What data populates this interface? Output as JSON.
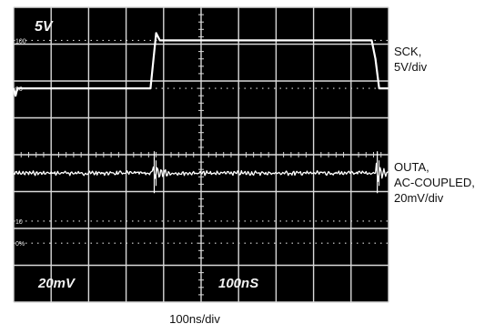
{
  "chart_data": {
    "type": "line",
    "title": "",
    "x_divisions": 10,
    "y_divisions": 8,
    "screen_readouts": {
      "top_left": "5V",
      "bottom_left": "20mV",
      "bottom_center": "100nS"
    },
    "marker_labels": [
      "100",
      "90",
      "10",
      "0%"
    ],
    "series": [
      {
        "name": "SCK, 5V/div",
        "scale": "5V/div",
        "x_div": [
          0,
          0.05,
          0.1,
          3.65,
          3.73,
          3.8,
          3.9,
          9.55,
          9.65,
          9.75,
          10
        ],
        "y_div": [
          5.8,
          5.6,
          5.8,
          5.8,
          6.6,
          7.3,
          7.1,
          7.1,
          6.6,
          5.8,
          5.8
        ]
      },
      {
        "name": "OUTA, AC-COUPLED, 20mV/div",
        "scale": "20mV/div",
        "baseline_div": 3.5,
        "transient_times_div": [
          3.75,
          9.7
        ]
      }
    ],
    "colors": {
      "screen": "#000000",
      "grid": "#d9d9d9",
      "trace": "#ffffff"
    }
  },
  "labels": {
    "sck": "SCK,\n5V/div",
    "outa": "OUTA,\nAC-COUPLED,\n20mV/div",
    "timebase": "100ns/div"
  }
}
